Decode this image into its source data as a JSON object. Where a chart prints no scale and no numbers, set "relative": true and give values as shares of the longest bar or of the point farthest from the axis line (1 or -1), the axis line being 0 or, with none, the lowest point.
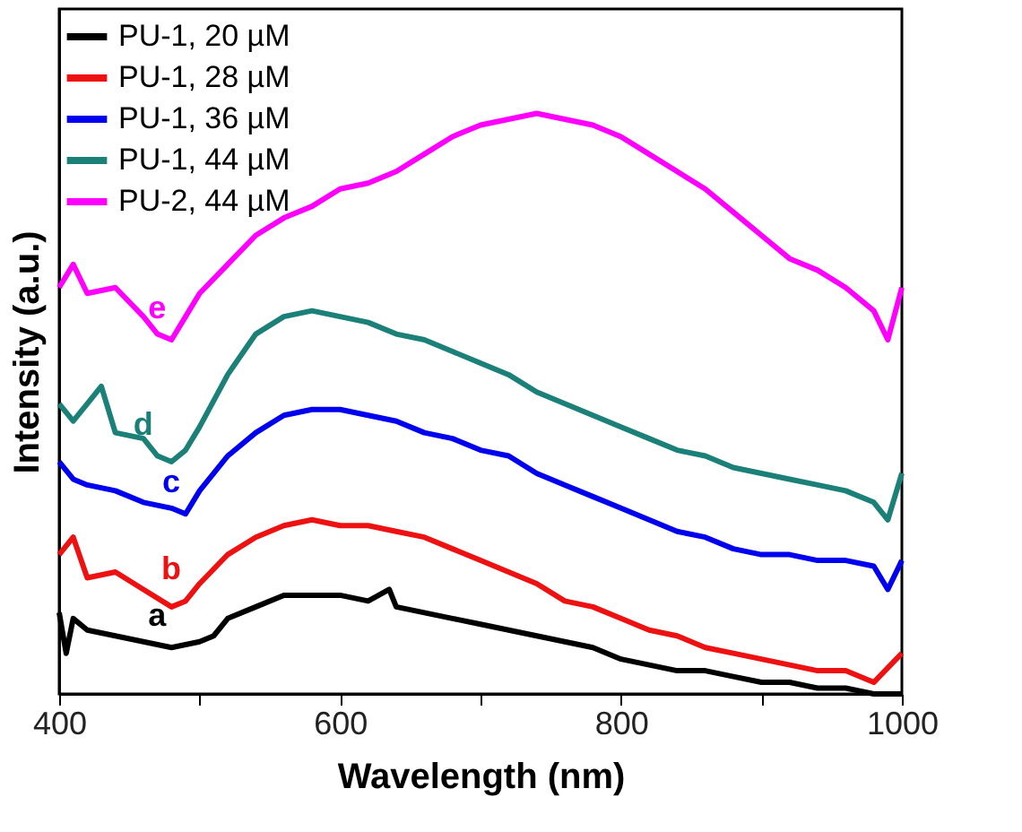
{
  "chart_data": {
    "type": "line",
    "xlabel": "Wavelength (nm)",
    "ylabel": "Intensity (a.u.)",
    "relative": true,
    "xlim": [
      400,
      1000
    ],
    "xticks": [
      400,
      {
        "value": 500,
        "label": null
      },
      600,
      {
        "value": 700,
        "label": null
      },
      800,
      {
        "value": 900,
        "label": null
      },
      1000
    ],
    "legend": "top left",
    "grid": false,
    "line_style": "solid",
    "marker": "none",
    "series": [
      {
        "name": "PU-1, 20 µM",
        "color": "#000000",
        "x": [
          400,
          405,
          410,
          420,
          440,
          460,
          480,
          500,
          510,
          520,
          540,
          560,
          580,
          600,
          620,
          635,
          640,
          660,
          680,
          700,
          720,
          740,
          760,
          780,
          800,
          820,
          840,
          860,
          880,
          900,
          920,
          940,
          960,
          980,
          1000
        ],
        "values": [
          0.14,
          0.07,
          0.13,
          0.11,
          0.1,
          0.09,
          0.08,
          0.09,
          0.1,
          0.13,
          0.15,
          0.17,
          0.17,
          0.17,
          0.16,
          0.18,
          0.15,
          0.14,
          0.13,
          0.12,
          0.11,
          0.1,
          0.09,
          0.08,
          0.06,
          0.05,
          0.04,
          0.04,
          0.03,
          0.02,
          0.02,
          0.01,
          0.01,
          0.0,
          0.0
        ]
      },
      {
        "name": "PU-1, 28 µM",
        "color": "#ee1111",
        "x": [
          400,
          410,
          420,
          440,
          460,
          480,
          490,
          500,
          520,
          540,
          560,
          580,
          600,
          620,
          640,
          660,
          680,
          700,
          720,
          740,
          760,
          780,
          800,
          820,
          840,
          860,
          880,
          900,
          920,
          940,
          960,
          980,
          1000
        ],
        "values": [
          0.24,
          0.27,
          0.2,
          0.21,
          0.18,
          0.15,
          0.16,
          0.19,
          0.24,
          0.27,
          0.29,
          0.3,
          0.29,
          0.29,
          0.28,
          0.27,
          0.25,
          0.23,
          0.21,
          0.19,
          0.16,
          0.15,
          0.13,
          0.11,
          0.1,
          0.08,
          0.07,
          0.06,
          0.05,
          0.04,
          0.04,
          0.02,
          0.07
        ]
      },
      {
        "name": "PU-1, 36 µM",
        "color": "#0000ee",
        "x": [
          400,
          410,
          420,
          440,
          460,
          480,
          490,
          500,
          520,
          540,
          560,
          580,
          600,
          620,
          640,
          660,
          680,
          700,
          720,
          740,
          760,
          780,
          800,
          820,
          840,
          860,
          880,
          900,
          920,
          940,
          960,
          980,
          990,
          1000
        ],
        "values": [
          0.4,
          0.37,
          0.36,
          0.35,
          0.33,
          0.32,
          0.31,
          0.35,
          0.41,
          0.45,
          0.48,
          0.49,
          0.49,
          0.48,
          0.47,
          0.45,
          0.44,
          0.42,
          0.41,
          0.38,
          0.36,
          0.34,
          0.32,
          0.3,
          0.28,
          0.27,
          0.25,
          0.24,
          0.24,
          0.23,
          0.23,
          0.22,
          0.18,
          0.23
        ]
      },
      {
        "name": "PU-1, 44 µM",
        "color": "#1a8078",
        "x": [
          400,
          410,
          420,
          430,
          440,
          460,
          470,
          480,
          490,
          500,
          520,
          540,
          560,
          580,
          600,
          620,
          640,
          660,
          680,
          700,
          720,
          740,
          760,
          780,
          800,
          820,
          840,
          860,
          880,
          900,
          920,
          940,
          960,
          980,
          990,
          1000
        ],
        "values": [
          0.5,
          0.47,
          0.5,
          0.53,
          0.45,
          0.44,
          0.41,
          0.4,
          0.42,
          0.46,
          0.55,
          0.62,
          0.65,
          0.66,
          0.65,
          0.64,
          0.62,
          0.61,
          0.59,
          0.57,
          0.55,
          0.52,
          0.5,
          0.48,
          0.46,
          0.44,
          0.42,
          0.41,
          0.39,
          0.38,
          0.37,
          0.36,
          0.35,
          0.33,
          0.3,
          0.38
        ]
      },
      {
        "name": "PU-2, 44 µM",
        "color": "#ff00ff",
        "x": [
          400,
          410,
          420,
          440,
          460,
          470,
          480,
          490,
          500,
          520,
          540,
          560,
          580,
          600,
          620,
          640,
          660,
          680,
          700,
          720,
          740,
          760,
          780,
          800,
          820,
          840,
          860,
          880,
          900,
          920,
          940,
          960,
          980,
          990,
          1000
        ],
        "values": [
          0.7,
          0.74,
          0.69,
          0.7,
          0.65,
          0.62,
          0.61,
          0.65,
          0.69,
          0.74,
          0.79,
          0.82,
          0.84,
          0.87,
          0.88,
          0.9,
          0.93,
          0.96,
          0.98,
          0.99,
          1.0,
          0.99,
          0.98,
          0.96,
          0.93,
          0.9,
          0.87,
          0.83,
          0.79,
          0.75,
          0.73,
          0.7,
          0.66,
          0.61,
          0.7
        ]
      }
    ],
    "annotations": [
      "a",
      "b",
      "c",
      "d",
      "e"
    ]
  }
}
